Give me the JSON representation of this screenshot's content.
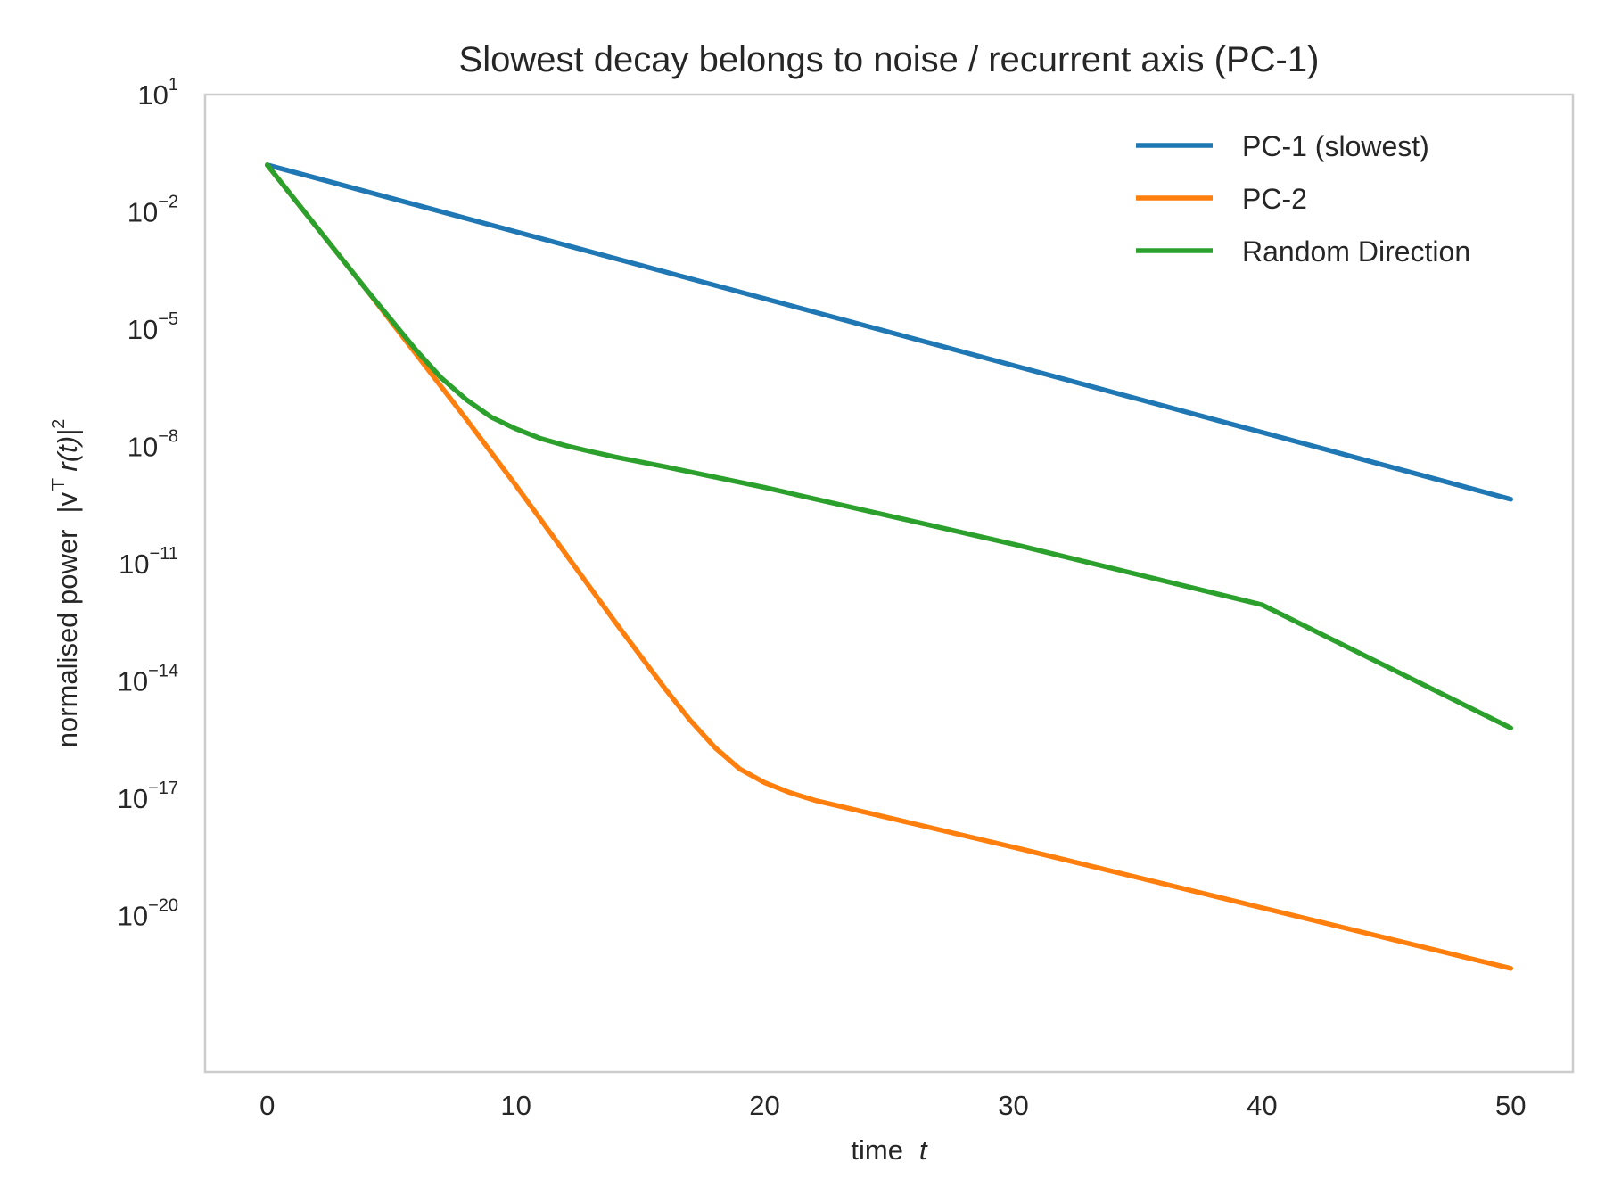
{
  "chart_data": {
    "type": "line",
    "title": "Slowest decay belongs to noise / recurrent axis (PC-1)",
    "xlabel": "time",
    "xlabel_var": "t",
    "ylabel": "normalised power",
    "ylabel_math": {
      "open": "|v",
      "transpose": "⊤",
      "body": "r(t)|",
      "exp": "2"
    },
    "xlim": [
      -2.5,
      52.5
    ],
    "ylim_log10": [
      1,
      -24.0
    ],
    "yscale": "log",
    "grid": false,
    "legend_position": "top-right",
    "x_ticks": [
      {
        "value": 0,
        "label": "0"
      },
      {
        "value": 10,
        "label": "10"
      },
      {
        "value": 20,
        "label": "20"
      },
      {
        "value": 30,
        "label": "30"
      },
      {
        "value": 40,
        "label": "40"
      },
      {
        "value": 50,
        "label": "50"
      }
    ],
    "y_ticks": [
      {
        "exp": 1,
        "base": "10",
        "sup": "1"
      },
      {
        "exp": -2,
        "base": "10",
        "sup": "−2"
      },
      {
        "exp": -5,
        "base": "10",
        "sup": "−5"
      },
      {
        "exp": -8,
        "base": "10",
        "sup": "−8"
      },
      {
        "exp": -11,
        "base": "10",
        "sup": "−11"
      },
      {
        "exp": -14,
        "base": "10",
        "sup": "−14"
      },
      {
        "exp": -17,
        "base": "10",
        "sup": "−17"
      },
      {
        "exp": -20,
        "base": "10",
        "sup": "−20"
      }
    ],
    "series": [
      {
        "name": "PC-1 (slowest)",
        "color": "#1f77b4",
        "points": [
          [
            0,
            -0.8
          ],
          [
            50,
            -9.35
          ]
        ]
      },
      {
        "name": "PC-2",
        "color": "#ff7f0e",
        "points": [
          [
            0,
            -0.8
          ],
          [
            2,
            -2.4
          ],
          [
            4,
            -4.0
          ],
          [
            6,
            -5.65
          ],
          [
            8,
            -7.3
          ],
          [
            10,
            -9.0
          ],
          [
            12,
            -10.75
          ],
          [
            14,
            -12.5
          ],
          [
            16,
            -14.2
          ],
          [
            17,
            -15.0
          ],
          [
            18,
            -15.7
          ],
          [
            19,
            -16.25
          ],
          [
            20,
            -16.6
          ],
          [
            21,
            -16.85
          ],
          [
            22,
            -17.05
          ],
          [
            24,
            -17.35
          ],
          [
            26,
            -17.65
          ],
          [
            30,
            -18.25
          ],
          [
            40,
            -19.8
          ],
          [
            50,
            -21.35
          ]
        ]
      },
      {
        "name": "Random Direction",
        "color": "#2ca02c",
        "points": [
          [
            0,
            -0.8
          ],
          [
            2,
            -2.4
          ],
          [
            4,
            -4.0
          ],
          [
            6,
            -5.55
          ],
          [
            7,
            -6.25
          ],
          [
            8,
            -6.8
          ],
          [
            9,
            -7.25
          ],
          [
            10,
            -7.55
          ],
          [
            11,
            -7.8
          ],
          [
            12,
            -7.98
          ],
          [
            13,
            -8.13
          ],
          [
            14,
            -8.27
          ],
          [
            16,
            -8.52
          ],
          [
            20,
            -9.05
          ],
          [
            30,
            -10.5
          ],
          [
            40,
            -12.05
          ],
          [
            50,
            -15.2
          ]
        ]
      }
    ]
  }
}
